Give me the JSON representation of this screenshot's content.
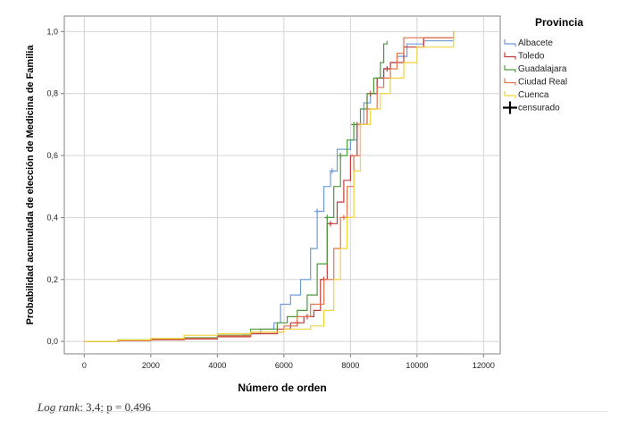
{
  "chart_data": {
    "type": "line",
    "xlabel": "Número de orden",
    "ylabel": "Probabilidad acumulada de elección de Medicina de Familia",
    "xlim": [
      -600,
      12500
    ],
    "ylim": [
      -0.04,
      1.05
    ],
    "xticks": [
      0,
      2000,
      4000,
      6000,
      8000,
      10000,
      12000
    ],
    "xtick_labels": [
      "0",
      "2000",
      "4000",
      "6000",
      "8000",
      "10000",
      "12000"
    ],
    "yticks": [
      0.0,
      0.2,
      0.4,
      0.6,
      0.8,
      1.0
    ],
    "ytick_labels": [
      "0,0",
      "0,2",
      "0,4",
      "0,6",
      "0,8",
      "1,0"
    ],
    "grid": true,
    "legend": {
      "title": "Provincia",
      "placement": "right",
      "censored_label": "censurado"
    },
    "series": [
      {
        "name": "Albacete",
        "color": "#6f9bd8",
        "points": [
          [
            0,
            0
          ],
          [
            1000,
            0.003
          ],
          [
            2000,
            0.006
          ],
          [
            3000,
            0.01
          ],
          [
            4000,
            0.015
          ],
          [
            4800,
            0.025
          ],
          [
            5300,
            0.04
          ],
          [
            5700,
            0.06
          ],
          [
            5900,
            0.12
          ],
          [
            6200,
            0.15
          ],
          [
            6500,
            0.2
          ],
          [
            6800,
            0.3
          ],
          [
            7000,
            0.42
          ],
          [
            7200,
            0.5
          ],
          [
            7400,
            0.55
          ],
          [
            7600,
            0.62
          ],
          [
            7800,
            0.62
          ],
          [
            8000,
            0.65
          ],
          [
            8200,
            0.7
          ],
          [
            8400,
            0.77
          ],
          [
            8600,
            0.8
          ],
          [
            8800,
            0.85
          ],
          [
            9000,
            0.88
          ],
          [
            9200,
            0.9
          ],
          [
            9400,
            0.92
          ],
          [
            9700,
            0.96
          ],
          [
            10200,
            0.97
          ],
          [
            11100,
            1.0
          ]
        ],
        "censored_x": [
          7000,
          7450
        ]
      },
      {
        "name": "Toledo",
        "color": "#c23b3b",
        "points": [
          [
            0,
            0
          ],
          [
            1000,
            0.003
          ],
          [
            2000,
            0.005
          ],
          [
            3000,
            0.008
          ],
          [
            4000,
            0.015
          ],
          [
            5000,
            0.025
          ],
          [
            5800,
            0.04
          ],
          [
            6200,
            0.06
          ],
          [
            6600,
            0.08
          ],
          [
            6900,
            0.1
          ],
          [
            7100,
            0.2
          ],
          [
            7300,
            0.38
          ],
          [
            7600,
            0.45
          ],
          [
            7800,
            0.52
          ],
          [
            8000,
            0.6
          ],
          [
            8200,
            0.7
          ],
          [
            8500,
            0.8
          ],
          [
            8800,
            0.85
          ],
          [
            9000,
            0.88
          ],
          [
            9200,
            0.9
          ],
          [
            9600,
            0.95
          ],
          [
            10200,
            0.98
          ],
          [
            11100,
            1.0
          ]
        ],
        "censored_x": [
          6400,
          6700,
          7200,
          7400,
          8200,
          8600,
          9100
        ]
      },
      {
        "name": "Guadalajara",
        "color": "#4d9a3d",
        "points": [
          [
            0,
            0
          ],
          [
            1000,
            0.005
          ],
          [
            2000,
            0.008
          ],
          [
            3000,
            0.012
          ],
          [
            4000,
            0.02
          ],
          [
            5000,
            0.04
          ],
          [
            5800,
            0.06
          ],
          [
            6100,
            0.08
          ],
          [
            6400,
            0.1
          ],
          [
            6700,
            0.15
          ],
          [
            7000,
            0.25
          ],
          [
            7300,
            0.4
          ],
          [
            7500,
            0.5
          ],
          [
            7700,
            0.6
          ],
          [
            7900,
            0.65
          ],
          [
            8100,
            0.7
          ],
          [
            8300,
            0.75
          ],
          [
            8500,
            0.8
          ],
          [
            8700,
            0.85
          ],
          [
            8900,
            0.9
          ],
          [
            9000,
            0.96
          ],
          [
            9100,
            0.97
          ]
        ],
        "censored_x": [
          7300,
          7700,
          8100
        ]
      },
      {
        "name": "Ciudad Real",
        "color": "#e3744e",
        "points": [
          [
            0,
            0
          ],
          [
            1000,
            0.003
          ],
          [
            2000,
            0.006
          ],
          [
            3000,
            0.01
          ],
          [
            4000,
            0.018
          ],
          [
            5000,
            0.03
          ],
          [
            6000,
            0.05
          ],
          [
            6400,
            0.08
          ],
          [
            6800,
            0.12
          ],
          [
            7200,
            0.2
          ],
          [
            7500,
            0.3
          ],
          [
            7700,
            0.4
          ],
          [
            7900,
            0.5
          ],
          [
            8100,
            0.6
          ],
          [
            8300,
            0.7
          ],
          [
            8500,
            0.75
          ],
          [
            8800,
            0.82
          ],
          [
            9000,
            0.85
          ],
          [
            9200,
            0.88
          ],
          [
            9400,
            0.93
          ],
          [
            9600,
            0.98
          ],
          [
            11100,
            1.0
          ]
        ],
        "censored_x": [
          7800,
          8300
        ]
      },
      {
        "name": "Cuenca",
        "color": "#f0d43a",
        "points": [
          [
            0,
            0
          ],
          [
            1000,
            0.005
          ],
          [
            2000,
            0.01
          ],
          [
            3000,
            0.02
          ],
          [
            4000,
            0.025
          ],
          [
            5000,
            0.03
          ],
          [
            6000,
            0.04
          ],
          [
            6800,
            0.05
          ],
          [
            7200,
            0.1
          ],
          [
            7500,
            0.2
          ],
          [
            7700,
            0.3
          ],
          [
            7900,
            0.4
          ],
          [
            8100,
            0.55
          ],
          [
            8300,
            0.7
          ],
          [
            8600,
            0.75
          ],
          [
            8900,
            0.8
          ],
          [
            9200,
            0.85
          ],
          [
            9600,
            0.9
          ],
          [
            10000,
            0.95
          ],
          [
            11100,
            1.0
          ]
        ],
        "censored_x": []
      }
    ]
  },
  "footnote": {
    "italic": "Log rank",
    "rest": ": 3,4; p = 0,496"
  }
}
